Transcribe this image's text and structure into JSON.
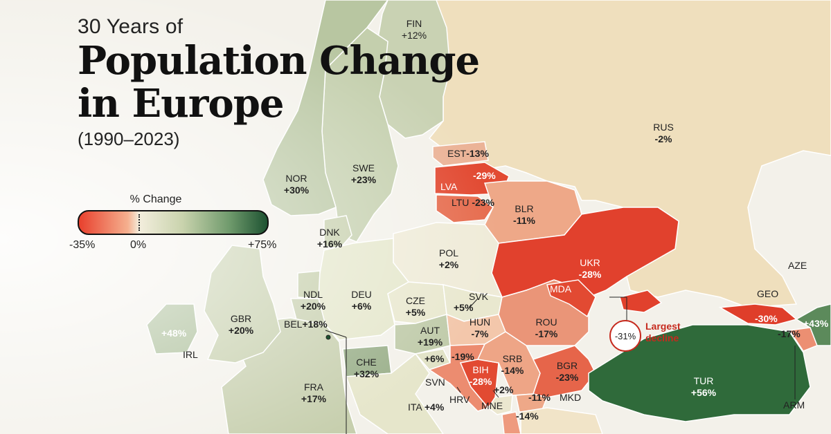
{
  "title": {
    "pre": "30 Years of",
    "main_line1": "Population Change",
    "main_line2": "in Europe",
    "years": "(1990–2023)"
  },
  "legend": {
    "title": "% Change",
    "min_label": "-35%",
    "zero_label": "0%",
    "max_label": "+75%",
    "colors": {
      "low": "#e8402d",
      "zero": "#f3eedd",
      "high": "#1d5231"
    }
  },
  "callout": {
    "value": "-31%",
    "line1": "Largest",
    "line2": "decline"
  },
  "countries": {
    "fin": {
      "code": "FIN",
      "change": "+12%"
    },
    "rus": {
      "code": "RUS",
      "change": "-2%"
    },
    "nor": {
      "code": "NOR",
      "change": "+30%"
    },
    "swe": {
      "code": "SWE",
      "change": "+23%"
    },
    "est": {
      "code": "EST",
      "change": "-13%"
    },
    "lva": {
      "code": "LVA",
      "change": "-29%"
    },
    "ltu": {
      "code": "LTU",
      "change": "-23%"
    },
    "blr": {
      "code": "BLR",
      "change": "-11%"
    },
    "dnk": {
      "code": "DNK",
      "change": "+16%"
    },
    "pol": {
      "code": "POL",
      "change": "+2%"
    },
    "ukr": {
      "code": "UKR",
      "change": "-28%"
    },
    "mda": {
      "code": "MDA"
    },
    "ndl": {
      "code": "NDL",
      "change": "+20%"
    },
    "deu": {
      "code": "DEU",
      "change": "+6%"
    },
    "cze": {
      "code": "CZE",
      "change": "+5%"
    },
    "svk": {
      "code": "SVK",
      "change": "+5%"
    },
    "gbr": {
      "code": "GBR",
      "change": "+20%"
    },
    "irl": {
      "code": "IRL",
      "change": "+48%"
    },
    "bel": {
      "code": "BEL",
      "change": "+18%"
    },
    "hun": {
      "code": "HUN",
      "change": "-7%"
    },
    "aut": {
      "code": "AUT",
      "change": "+19%"
    },
    "rou": {
      "code": "ROU",
      "change": "-17%"
    },
    "geo": {
      "code": "GEO",
      "change": "-30%"
    },
    "aze": {
      "code": "AZE",
      "change": "+43%"
    },
    "arm": {
      "code": "ARM",
      "change": "-17%"
    },
    "che": {
      "code": "CHE",
      "change": "+32%"
    },
    "fra": {
      "code": "FRA",
      "change": "+17%"
    },
    "svn": {
      "code": "SVN",
      "change": "+6%"
    },
    "hrv": {
      "code": "HRV",
      "change": "-19%"
    },
    "bih": {
      "code": "BIH",
      "change": "-28%"
    },
    "srb": {
      "code": "SRB",
      "change": "-14%"
    },
    "bgr": {
      "code": "BGR",
      "change": "-23%"
    },
    "tur": {
      "code": "TUR",
      "change": "+56%"
    },
    "mne": {
      "code": "MNE",
      "change": "+2%"
    },
    "mkd": {
      "code": "MKD",
      "change": "-11%"
    },
    "alb": {
      "change": "-14%"
    },
    "ita": {
      "code": "ITA",
      "change": "+4%"
    }
  }
}
